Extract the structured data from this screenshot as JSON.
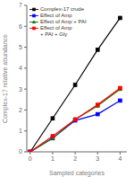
{
  "chart_data": {
    "type": "line",
    "x": [
      0,
      1,
      2,
      3,
      4
    ],
    "series": [
      {
        "name": "Complex-17 crude",
        "color": "black",
        "marker": "square",
        "values": [
          0,
          1.6,
          3.2,
          4.88,
          6.4
        ]
      },
      {
        "name": "Effect of Amp",
        "color": "blue",
        "marker": "square",
        "values": [
          0,
          0.65,
          1.5,
          1.8,
          2.45
        ]
      },
      {
        "name": "Effect of Amp + PAI",
        "color": "green",
        "marker": "triangle",
        "values": [
          0,
          0.65,
          1.55,
          2.2,
          3.0
        ]
      },
      {
        "name": "Effect of Amp\n+ PAI + Gly",
        "color": "red",
        "marker": "square",
        "values": [
          0,
          0.75,
          1.55,
          2.25,
          3.05
        ]
      }
    ],
    "xlabel": "Sampled categories",
    "ylabel": "Complex-17 relative abundance",
    "xlim": [
      -0.15,
      4.3
    ],
    "ylim": [
      0,
      7
    ],
    "xticks": [
      0,
      1,
      2,
      3,
      4
    ],
    "yticks": [
      0,
      1,
      2,
      3,
      4,
      5,
      6,
      7
    ],
    "legend": "upper left"
  }
}
